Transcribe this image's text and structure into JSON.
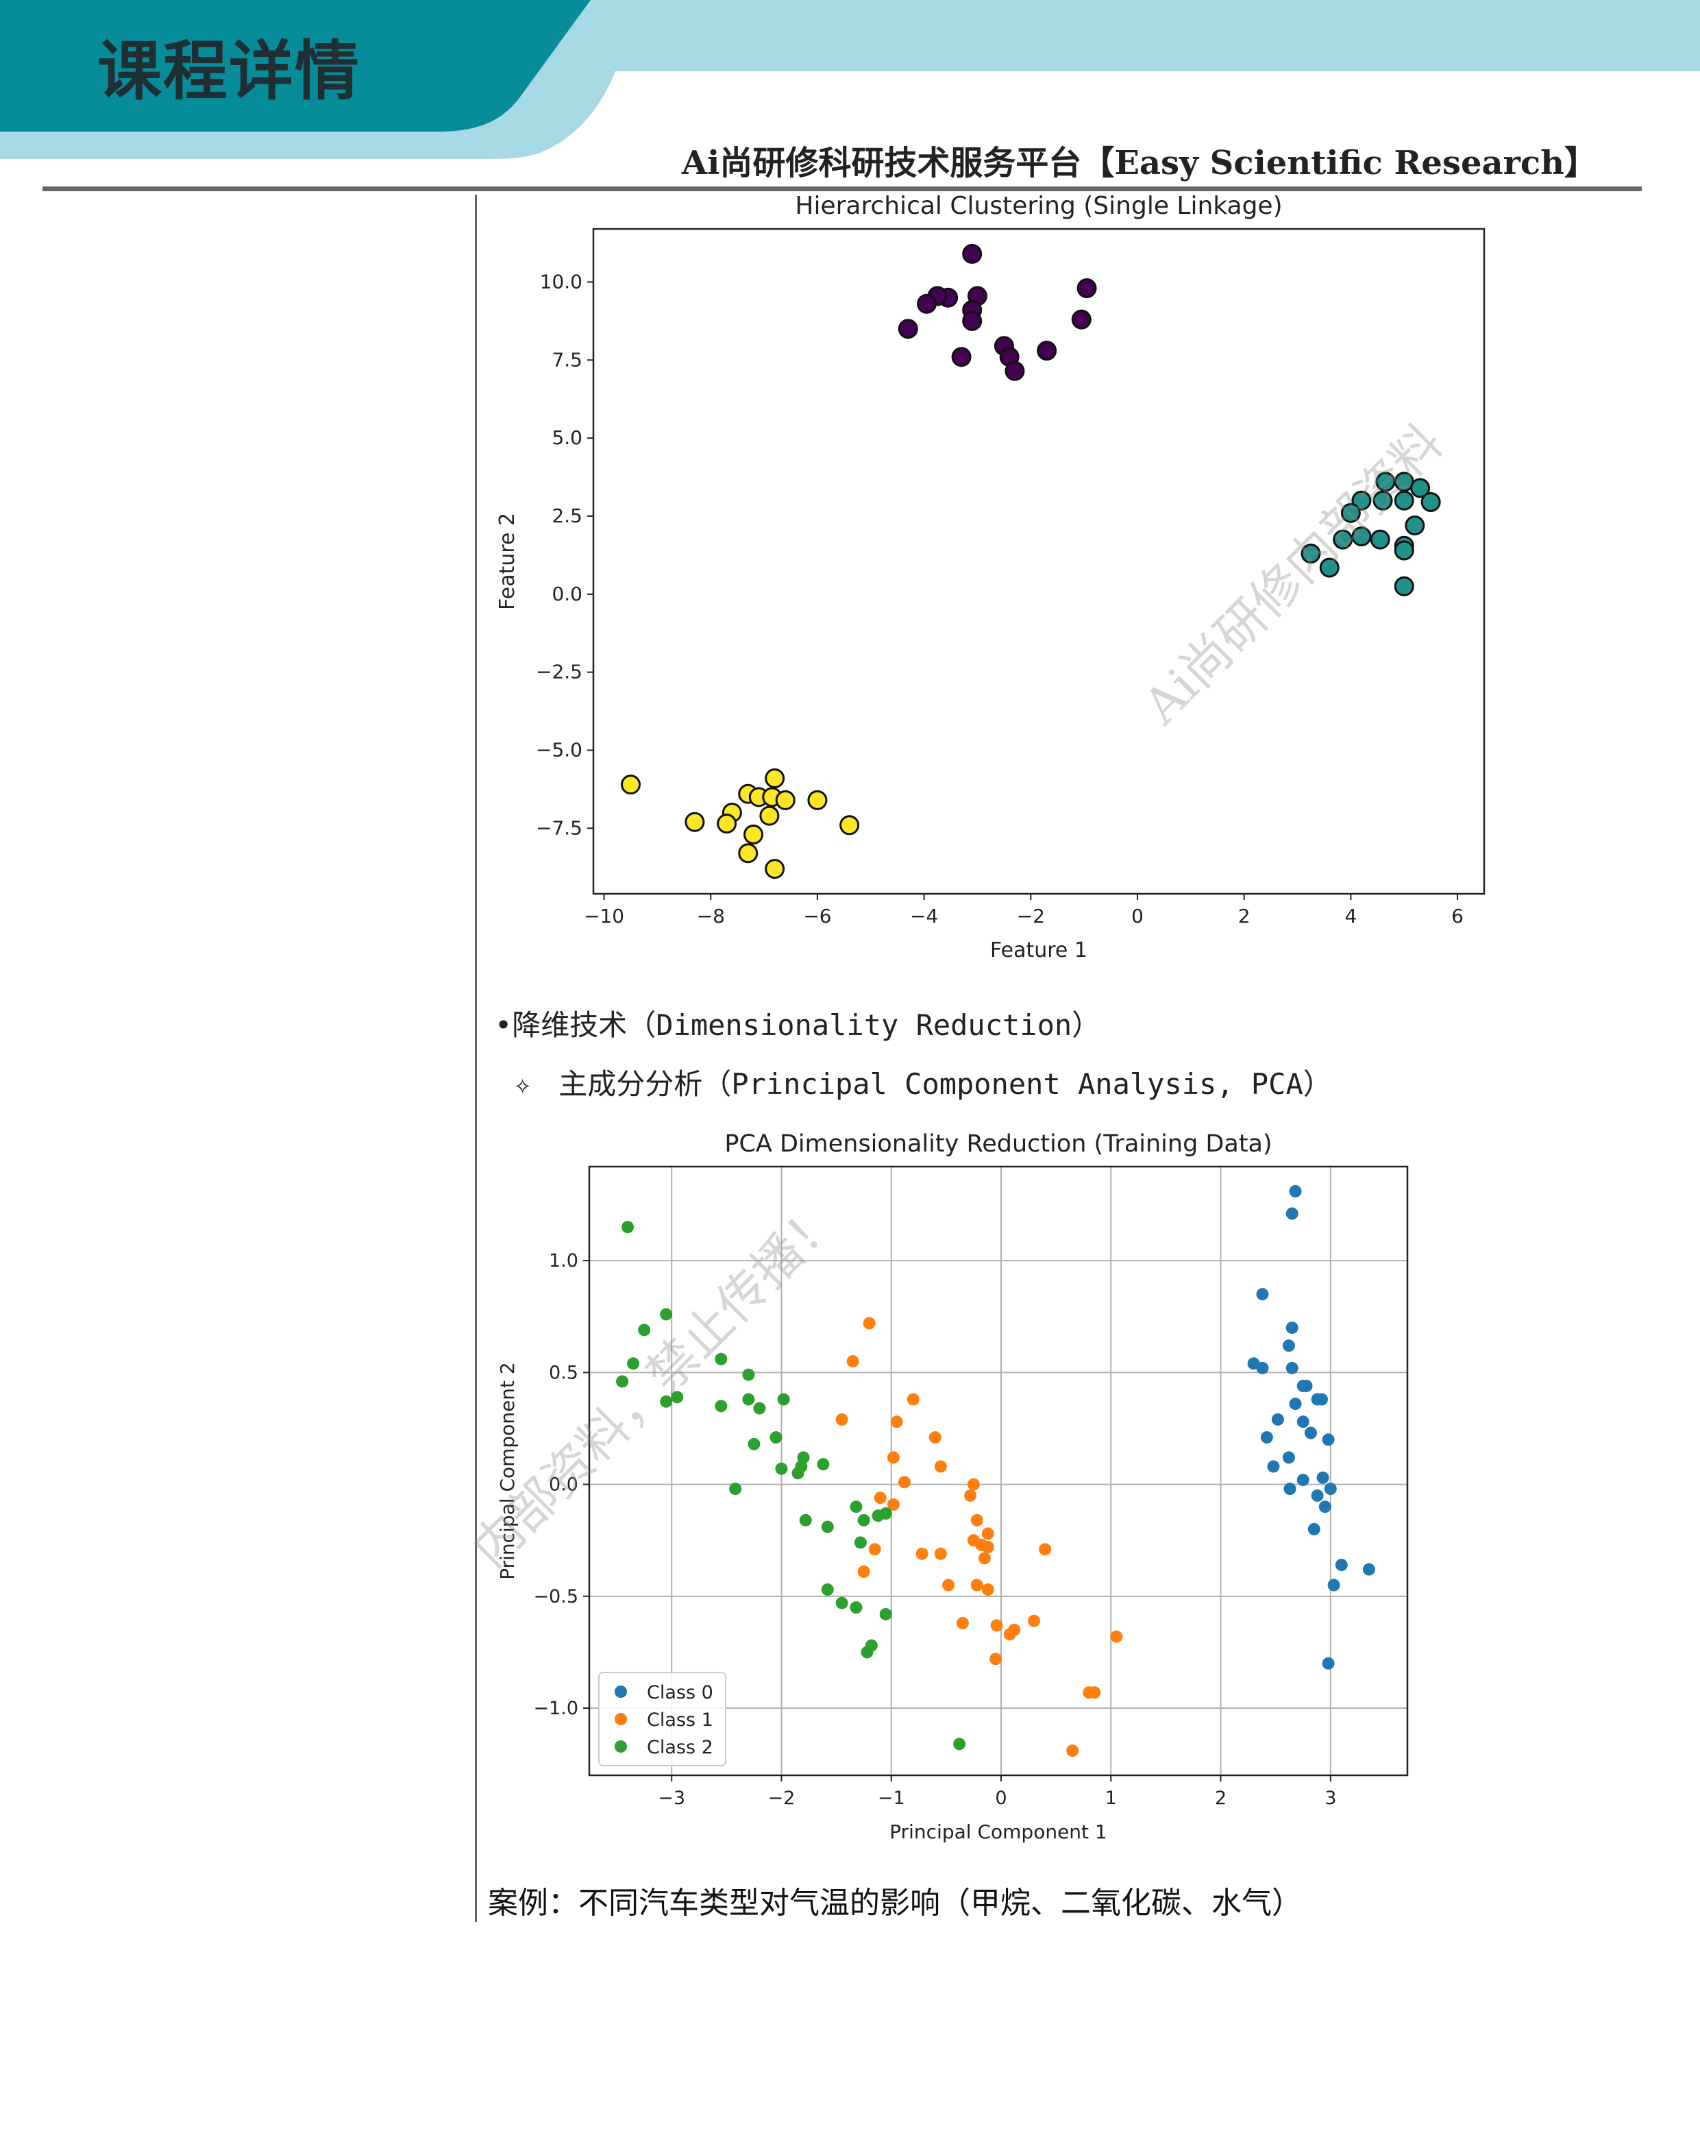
{
  "header": {
    "title": "课程详情",
    "subtitle": "Ai尚研修科研技术服务平台【Easy Scientific Research】",
    "colors": {
      "dark": "#078d99",
      "light": "#a6d9e4"
    }
  },
  "watermarks": {
    "top": "Ai尚研修内部资料",
    "bottom": "内部资料，禁止传播！"
  },
  "section": {
    "bullet": "•降维技术（Dimensionality Reduction）",
    "sub_bullet_icon": "✧",
    "sub_bullet": "主成分分析（Principal Component Analysis, PCA）",
    "case": "案例：不同汽车类型对气温的影响（甲烷、二氧化碳、水气）"
  },
  "chart_data": [
    {
      "type": "scatter",
      "title": "Hierarchical Clustering (Single Linkage)",
      "xlabel": "Feature 1",
      "ylabel": "Feature 2",
      "xlim": [
        -10.2,
        6.5
      ],
      "ylim": [
        -9.6,
        11.7
      ],
      "xticks": [
        -10,
        -8,
        -6,
        -4,
        -2,
        0,
        2,
        4,
        6
      ],
      "yticks": [
        -7.5,
        -5.0,
        -2.5,
        0.0,
        2.5,
        5.0,
        7.5,
        10.0
      ],
      "xtick_labels": [
        "−10",
        "−8",
        "−6",
        "−4",
        "−2",
        "0",
        "2",
        "4",
        "6"
      ],
      "ytick_labels": [
        "−7.5",
        "−5.0",
        "−2.5",
        "0.0",
        "2.5",
        "5.0",
        "7.5",
        "10.0"
      ],
      "grid": false,
      "series": [
        {
          "color": "#440154",
          "points": [
            [
              -3.1,
              10.9
            ],
            [
              -0.95,
              9.8
            ],
            [
              -3.0,
              9.55
            ],
            [
              -3.55,
              9.5
            ],
            [
              -3.75,
              9.55
            ],
            [
              -3.95,
              9.3
            ],
            [
              -3.1,
              9.1
            ],
            [
              -3.1,
              8.75
            ],
            [
              -1.05,
              8.8
            ],
            [
              -4.3,
              8.5
            ],
            [
              -2.5,
              7.95
            ],
            [
              -2.4,
              7.6
            ],
            [
              -3.3,
              7.6
            ],
            [
              -1.7,
              7.8
            ],
            [
              -2.3,
              7.15
            ]
          ]
        },
        {
          "color": "#21918c",
          "points": [
            [
              4.65,
              3.6
            ],
            [
              5.0,
              3.6
            ],
            [
              5.3,
              3.4
            ],
            [
              4.2,
              3.0
            ],
            [
              4.6,
              3.0
            ],
            [
              5.0,
              3.0
            ],
            [
              5.5,
              2.95
            ],
            [
              4.0,
              2.6
            ],
            [
              5.2,
              2.2
            ],
            [
              3.85,
              1.75
            ],
            [
              4.2,
              1.85
            ],
            [
              4.55,
              1.75
            ],
            [
              5.0,
              1.55
            ],
            [
              5.0,
              1.4
            ],
            [
              3.25,
              1.3
            ],
            [
              3.6,
              0.85
            ],
            [
              5.0,
              0.25
            ]
          ]
        },
        {
          "color": "#fde725",
          "points": [
            [
              -9.5,
              -6.1
            ],
            [
              -6.8,
              -5.9
            ],
            [
              -7.3,
              -6.4
            ],
            [
              -7.1,
              -6.5
            ],
            [
              -6.85,
              -6.5
            ],
            [
              -6.6,
              -6.6
            ],
            [
              -6.0,
              -6.6
            ],
            [
              -7.6,
              -7.0
            ],
            [
              -6.9,
              -7.1
            ],
            [
              -8.3,
              -7.3
            ],
            [
              -7.7,
              -7.35
            ],
            [
              -5.4,
              -7.4
            ],
            [
              -7.2,
              -7.7
            ],
            [
              -7.3,
              -8.3
            ],
            [
              -6.8,
              -8.8
            ]
          ]
        }
      ]
    },
    {
      "type": "scatter",
      "title": "PCA Dimensionality Reduction (Training Data)",
      "xlabel": "Principal Component 1",
      "ylabel": "Principal Component 2",
      "xlim": [
        -3.75,
        3.7
      ],
      "ylim": [
        -1.3,
        1.42
      ],
      "xticks": [
        -3,
        -2,
        -1,
        0,
        1,
        2,
        3
      ],
      "yticks": [
        -1.0,
        -0.5,
        0.0,
        0.5,
        1.0
      ],
      "xtick_labels": [
        "−3",
        "−2",
        "−1",
        "0",
        "1",
        "2",
        "3"
      ],
      "ytick_labels": [
        "−1.0",
        "−0.5",
        "0.0",
        "0.5",
        "1.0"
      ],
      "grid": true,
      "legend": "lower-left",
      "series": [
        {
          "name": "Class 0",
          "color": "#1f77b4",
          "points": [
            [
              2.68,
              1.31
            ],
            [
              2.65,
              1.21
            ],
            [
              2.38,
              0.85
            ],
            [
              2.65,
              0.7
            ],
            [
              2.62,
              0.62
            ],
            [
              2.3,
              0.54
            ],
            [
              2.38,
              0.52
            ],
            [
              2.65,
              0.52
            ],
            [
              2.75,
              0.44
            ],
            [
              2.78,
              0.44
            ],
            [
              2.88,
              0.38
            ],
            [
              2.92,
              0.38
            ],
            [
              2.68,
              0.36
            ],
            [
              2.52,
              0.29
            ],
            [
              2.75,
              0.28
            ],
            [
              2.82,
              0.23
            ],
            [
              2.42,
              0.21
            ],
            [
              2.98,
              0.2
            ],
            [
              2.62,
              0.12
            ],
            [
              2.48,
              0.08
            ],
            [
              2.75,
              0.02
            ],
            [
              2.93,
              0.03
            ],
            [
              2.63,
              -0.02
            ],
            [
              2.88,
              -0.05
            ],
            [
              3.0,
              -0.02
            ],
            [
              2.95,
              -0.1
            ],
            [
              2.85,
              -0.2
            ],
            [
              3.1,
              -0.36
            ],
            [
              3.35,
              -0.38
            ],
            [
              3.03,
              -0.45
            ],
            [
              2.98,
              -0.8
            ]
          ]
        },
        {
          "name": "Class 1",
          "color": "#ff7f0e",
          "points": [
            [
              -1.2,
              0.72
            ],
            [
              -1.35,
              0.55
            ],
            [
              -0.8,
              0.38
            ],
            [
              -1.45,
              0.29
            ],
            [
              -0.95,
              0.28
            ],
            [
              -0.6,
              0.21
            ],
            [
              -0.98,
              0.12
            ],
            [
              -0.55,
              0.08
            ],
            [
              -0.88,
              0.01
            ],
            [
              -0.25,
              0.0
            ],
            [
              -1.1,
              -0.06
            ],
            [
              -0.98,
              -0.09
            ],
            [
              -0.28,
              -0.05
            ],
            [
              -0.22,
              -0.16
            ],
            [
              -0.12,
              -0.22
            ],
            [
              -0.25,
              -0.25
            ],
            [
              -0.18,
              -0.27
            ],
            [
              -0.12,
              -0.28
            ],
            [
              -1.15,
              -0.29
            ],
            [
              -0.72,
              -0.31
            ],
            [
              -0.55,
              -0.31
            ],
            [
              -0.15,
              -0.33
            ],
            [
              0.4,
              -0.29
            ],
            [
              -1.25,
              -0.39
            ],
            [
              -0.48,
              -0.45
            ],
            [
              -0.22,
              -0.45
            ],
            [
              -0.12,
              -0.47
            ],
            [
              -0.35,
              -0.62
            ],
            [
              -0.04,
              -0.63
            ],
            [
              0.12,
              -0.65
            ],
            [
              0.3,
              -0.61
            ],
            [
              0.08,
              -0.67
            ],
            [
              1.05,
              -0.68
            ],
            [
              -0.05,
              -0.78
            ],
            [
              0.85,
              -0.93
            ],
            [
              0.8,
              -0.93
            ],
            [
              0.65,
              -1.19
            ]
          ]
        },
        {
          "name": "Class 2",
          "color": "#2ca02c",
          "points": [
            [
              -3.4,
              1.15
            ],
            [
              -3.05,
              0.76
            ],
            [
              -3.25,
              0.69
            ],
            [
              -3.35,
              0.54
            ],
            [
              -2.55,
              0.56
            ],
            [
              -2.3,
              0.49
            ],
            [
              -3.45,
              0.46
            ],
            [
              -2.95,
              0.39
            ],
            [
              -3.05,
              0.37
            ],
            [
              -2.55,
              0.35
            ],
            [
              -2.3,
              0.38
            ],
            [
              -1.98,
              0.38
            ],
            [
              -2.2,
              0.34
            ],
            [
              -2.05,
              0.21
            ],
            [
              -2.25,
              0.18
            ],
            [
              -1.8,
              0.12
            ],
            [
              -1.82,
              0.08
            ],
            [
              -1.62,
              0.09
            ],
            [
              -1.85,
              0.05
            ],
            [
              -2.0,
              0.07
            ],
            [
              -2.42,
              -0.02
            ],
            [
              -1.32,
              -0.1
            ],
            [
              -1.12,
              -0.14
            ],
            [
              -1.05,
              -0.13
            ],
            [
              -1.25,
              -0.16
            ],
            [
              -1.78,
              -0.16
            ],
            [
              -1.58,
              -0.19
            ],
            [
              -1.28,
              -0.26
            ],
            [
              -1.58,
              -0.47
            ],
            [
              -1.45,
              -0.53
            ],
            [
              -1.32,
              -0.55
            ],
            [
              -1.05,
              -0.58
            ],
            [
              -1.18,
              -0.72
            ],
            [
              -1.22,
              -0.75
            ],
            [
              -0.38,
              -1.16
            ]
          ]
        }
      ]
    }
  ]
}
